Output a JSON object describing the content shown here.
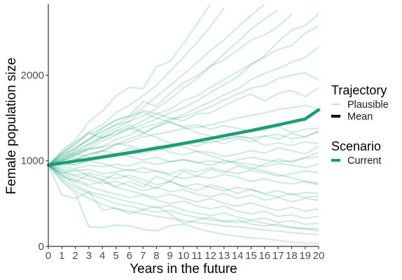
{
  "chart_data": {
    "type": "line",
    "xlabel": "Years in the future",
    "ylabel": "Female population size",
    "xlim": [
      0,
      20
    ],
    "ylim": [
      0,
      2830
    ],
    "x_ticks": [
      0,
      1,
      2,
      3,
      4,
      5,
      6,
      7,
      8,
      9,
      10,
      11,
      12,
      13,
      14,
      15,
      16,
      17,
      18,
      19,
      20
    ],
    "y_ticks": [
      0,
      1000,
      2000
    ],
    "grid": false,
    "legend_position": "right",
    "colors": {
      "trajectory": "#1b9e77",
      "mean_key": "#000000",
      "plausible_key": "#cccccc"
    },
    "legend": [
      {
        "title": "Trajectory",
        "items": [
          {
            "label": "Plausible",
            "style": "plausible"
          },
          {
            "label": "Mean",
            "style": "mean"
          }
        ]
      },
      {
        "title": "Scenario",
        "items": [
          {
            "label": "Current",
            "style": "current"
          }
        ]
      }
    ],
    "mean_series": {
      "x": [
        0,
        1,
        2,
        3,
        4,
        5,
        6,
        7,
        8,
        9,
        10,
        11,
        12,
        13,
        14,
        15,
        16,
        17,
        18,
        19,
        20
      ],
      "y": [
        950,
        973,
        996,
        1020,
        1044,
        1069,
        1095,
        1121,
        1148,
        1175,
        1203,
        1232,
        1262,
        1292,
        1323,
        1354,
        1387,
        1420,
        1454,
        1489,
        1596
      ]
    },
    "trajectories": [
      [
        950,
        1120,
        1240,
        1460,
        1580,
        1760,
        1860,
        1840,
        2100,
        2160,
        2370,
        2600,
        2830
      ],
      [
        950,
        1080,
        1190,
        1340,
        1420,
        1560,
        1650,
        1760,
        1880,
        2050,
        2210,
        2380,
        2570,
        2790
      ],
      [
        950,
        1040,
        1140,
        1250,
        1330,
        1420,
        1510,
        1620,
        1750,
        1880,
        2010,
        2150,
        2290,
        2410,
        2560,
        2700,
        2830
      ],
      [
        950,
        1010,
        1100,
        1200,
        1300,
        1380,
        1460,
        1520,
        1610,
        1720,
        1850,
        1960,
        2100,
        2250,
        2390,
        2540,
        2660,
        2760
      ],
      [
        950,
        1060,
        1160,
        1240,
        1390,
        1470,
        1530,
        1690,
        1640,
        1790,
        1910,
        1990,
        2110,
        2180,
        2290,
        2410,
        2470,
        2570,
        2710
      ],
      [
        950,
        990,
        1060,
        1140,
        1230,
        1300,
        1370,
        1420,
        1490,
        1560,
        1620,
        1700,
        1800,
        1890,
        1980,
        2120,
        2230,
        2390,
        2530,
        2580,
        2720
      ],
      [
        950,
        1030,
        1080,
        1160,
        1280,
        1310,
        1390,
        1470,
        1550,
        1600,
        1700,
        1760,
        1860,
        1950,
        2040,
        2130,
        2210,
        2300,
        2350,
        2490,
        2580
      ],
      [
        950,
        970,
        1020,
        1080,
        1120,
        1190,
        1260,
        1310,
        1400,
        1470,
        1540,
        1620,
        1690,
        1770,
        1840,
        1950,
        2020,
        2080,
        2150,
        2210,
        2330
      ],
      [
        950,
        1000,
        1070,
        1130,
        1170,
        1250,
        1300,
        1390,
        1430,
        1490,
        1510,
        1570,
        1630,
        1710,
        1780,
        1850,
        1880,
        1960,
        2000,
        2030,
        1940
      ],
      [
        950,
        1070,
        1140,
        1260,
        1350,
        1420,
        1460,
        1590,
        1550,
        1500,
        1470,
        1550,
        1560,
        1640,
        1720,
        1780,
        1700,
        1790,
        1820,
        1750,
        1850
      ],
      [
        950,
        960,
        1010,
        1080,
        1110,
        1190,
        1220,
        1280,
        1310,
        1340,
        1380,
        1390,
        1420,
        1460,
        1500,
        1530,
        1560,
        1600,
        1620,
        1650,
        1600
      ],
      [
        950,
        1020,
        1120,
        1190,
        1270,
        1340,
        1380,
        1330,
        1400,
        1450,
        1400,
        1420,
        1370,
        1410,
        1380,
        1340,
        1360,
        1400,
        1330,
        1370,
        1380
      ],
      [
        950,
        1090,
        1200,
        1310,
        1380,
        1480,
        1520,
        1570,
        1500,
        1450,
        1390,
        1330,
        1290,
        1250,
        1290,
        1260,
        1180,
        1210,
        1180,
        1220,
        1200
      ],
      [
        950,
        940,
        960,
        1000,
        1030,
        1050,
        1080,
        1090,
        1120,
        1160,
        1190,
        1220,
        1210,
        1250,
        1280,
        1270,
        1290,
        1310,
        1260,
        1280,
        1340
      ],
      [
        950,
        1050,
        1100,
        1140,
        1160,
        1200,
        1180,
        1130,
        1160,
        1100,
        1070,
        1110,
        1100,
        1050,
        1080,
        1120,
        1090,
        1150,
        1120,
        1080,
        1170
      ],
      [
        950,
        1010,
        1030,
        1020,
        1060,
        1090,
        1050,
        1010,
        1040,
        990,
        1010,
        980,
        1000,
        970,
        1010,
        1040,
        1010,
        990,
        1000,
        1030,
        1050
      ],
      [
        950,
        920,
        910,
        950,
        930,
        960,
        940,
        990,
        960,
        990,
        1020,
        980,
        950,
        1000,
        980,
        960,
        930,
        970,
        950,
        920,
        960
      ],
      [
        950,
        980,
        950,
        1000,
        970,
        920,
        880,
        920,
        880,
        850,
        900,
        870,
        920,
        880,
        850,
        890,
        860,
        820,
        850,
        880,
        860
      ],
      [
        950,
        900,
        880,
        900,
        850,
        870,
        900,
        860,
        880,
        830,
        790,
        820,
        800,
        840,
        810,
        760,
        790,
        750,
        730,
        760,
        740
      ],
      [
        950,
        890,
        830,
        860,
        820,
        790,
        830,
        780,
        720,
        760,
        700,
        730,
        690,
        650,
        690,
        660,
        620,
        650,
        600,
        630,
        620
      ],
      [
        950,
        870,
        820,
        780,
        730,
        760,
        710,
        650,
        690,
        640,
        660,
        610,
        580,
        620,
        560,
        600,
        540,
        570,
        520,
        560,
        540
      ],
      [
        950,
        860,
        780,
        720,
        760,
        690,
        650,
        610,
        570,
        610,
        560,
        520,
        560,
        500,
        470,
        510,
        460,
        420,
        460,
        410,
        440
      ],
      [
        950,
        820,
        760,
        700,
        650,
        610,
        570,
        600,
        540,
        500,
        530,
        470,
        440,
        470,
        410,
        380,
        410,
        350,
        370,
        330,
        350
      ],
      [
        950,
        840,
        720,
        640,
        600,
        560,
        520,
        490,
        450,
        480,
        420,
        390,
        360,
        390,
        340,
        310,
        330,
        280,
        300,
        260,
        270
      ],
      [
        950,
        800,
        690,
        620,
        560,
        500,
        470,
        430,
        400,
        420,
        370,
        340,
        310,
        290,
        310,
        260,
        240,
        260,
        220,
        200,
        210
      ],
      [
        950,
        780,
        650,
        560,
        490,
        440,
        410,
        380,
        350,
        330,
        300,
        280,
        260,
        240,
        230,
        210,
        190,
        180,
        160,
        150,
        140
      ],
      [
        950,
        600,
        560,
        640,
        420,
        450,
        380,
        430,
        470,
        380,
        270,
        310,
        340,
        290,
        280,
        300,
        270,
        240,
        220,
        210,
        180
      ],
      [
        950,
        760,
        620,
        230,
        220,
        250,
        240,
        200,
        180,
        240,
        260,
        210,
        170,
        140,
        120,
        100,
        90,
        70,
        50,
        40,
        30
      ],
      [
        950,
        830,
        760,
        840,
        780,
        700,
        760,
        690,
        820,
        760,
        880,
        820,
        900,
        860,
        940,
        900,
        960,
        1020,
        980,
        1040,
        1100
      ],
      [
        950,
        1000,
        1080,
        1050,
        1120,
        1080,
        1150,
        1110,
        1180,
        1140,
        1210,
        1170,
        1240,
        1200,
        1260,
        1220,
        1290,
        1250,
        1320,
        1280,
        1350
      ],
      [
        950,
        1100,
        1220,
        1330,
        1260,
        1350,
        1420,
        1330,
        1270,
        1210,
        1160,
        1110,
        1060,
        1010,
        960,
        920,
        880,
        840,
        800,
        760,
        720
      ],
      [
        950,
        850,
        900,
        820,
        770,
        850,
        800,
        730,
        680,
        760,
        700,
        650,
        720,
        680,
        620,
        670,
        610,
        580,
        620,
        570,
        590
      ]
    ]
  }
}
